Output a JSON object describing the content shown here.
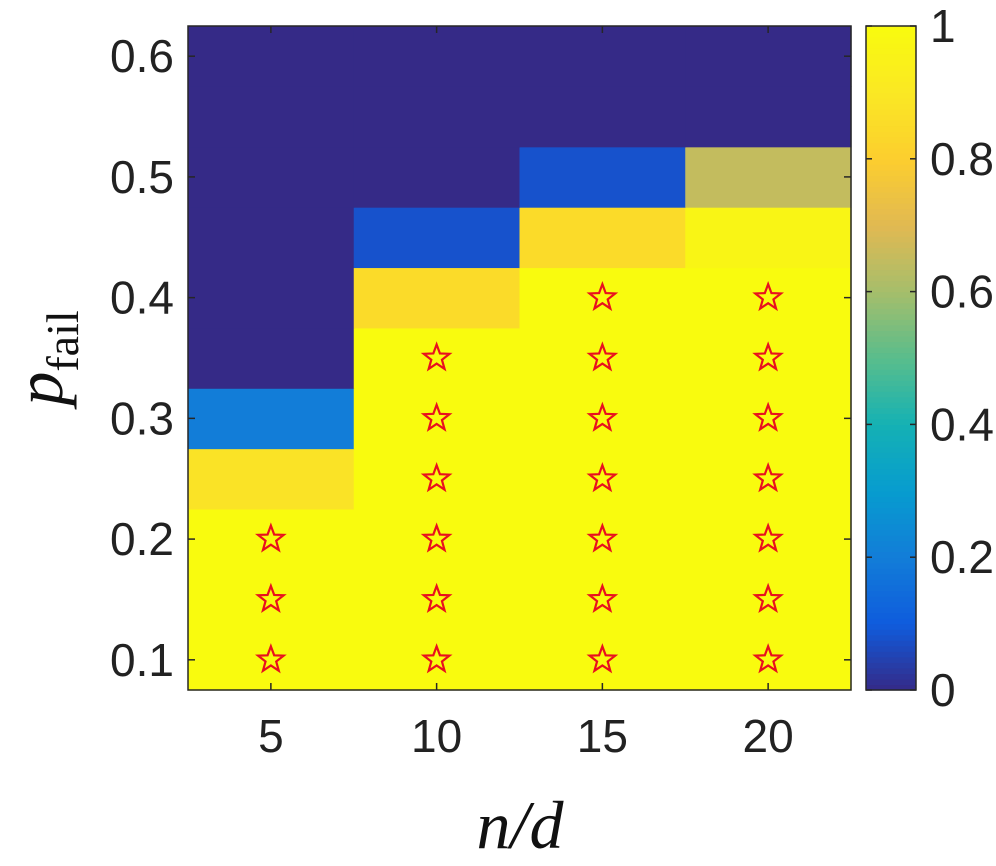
{
  "chart_data": {
    "type": "heatmap",
    "xlabel_main": "n/d",
    "ylabel_main": "p",
    "ylabel_sub": "fail",
    "x": [
      5,
      10,
      15,
      20
    ],
    "x_tick_labels": [
      "5",
      "10",
      "15",
      "20"
    ],
    "y": [
      0.1,
      0.15,
      0.2,
      0.25,
      0.3,
      0.35,
      0.4,
      0.45,
      0.5,
      0.55,
      0.6
    ],
    "y_tick_labels": [
      "0.1",
      "0.2",
      "0.3",
      "0.4",
      "0.5",
      "0.6"
    ],
    "y_ticks": [
      0.1,
      0.2,
      0.3,
      0.4,
      0.5,
      0.6
    ],
    "values": [
      [
        1,
        1,
        1,
        1
      ],
      [
        1,
        1,
        1,
        1
      ],
      [
        1,
        1,
        1,
        1
      ],
      [
        0.88,
        1,
        1,
        1
      ],
      [
        0.2,
        1,
        1,
        1
      ],
      [
        0,
        1,
        1,
        1
      ],
      [
        0,
        0.85,
        1,
        1
      ],
      [
        0,
        0.08,
        0.85,
        0.97
      ],
      [
        0,
        0,
        0.08,
        0.65
      ],
      [
        0,
        0,
        0,
        0
      ],
      [
        0,
        0,
        0,
        0
      ]
    ],
    "clim": [
      0,
      1
    ],
    "colormap": "parula",
    "colorbar_ticks": [
      0,
      0.2,
      0.4,
      0.6,
      0.8,
      1
    ],
    "colorbar_tick_labels": [
      "0",
      "0.2",
      "0.4",
      "0.6",
      "0.8",
      "1"
    ],
    "markers": {
      "symbol": "star",
      "color": "#e8101e",
      "points": [
        [
          5,
          0.1
        ],
        [
          5,
          0.15
        ],
        [
          5,
          0.2
        ],
        [
          10,
          0.1
        ],
        [
          10,
          0.15
        ],
        [
          10,
          0.2
        ],
        [
          10,
          0.25
        ],
        [
          10,
          0.3
        ],
        [
          10,
          0.35
        ],
        [
          15,
          0.1
        ],
        [
          15,
          0.15
        ],
        [
          15,
          0.2
        ],
        [
          15,
          0.25
        ],
        [
          15,
          0.3
        ],
        [
          15,
          0.35
        ],
        [
          15,
          0.4
        ],
        [
          20,
          0.1
        ],
        [
          20,
          0.15
        ],
        [
          20,
          0.2
        ],
        [
          20,
          0.25
        ],
        [
          20,
          0.3
        ],
        [
          20,
          0.35
        ],
        [
          20,
          0.4
        ]
      ]
    }
  }
}
